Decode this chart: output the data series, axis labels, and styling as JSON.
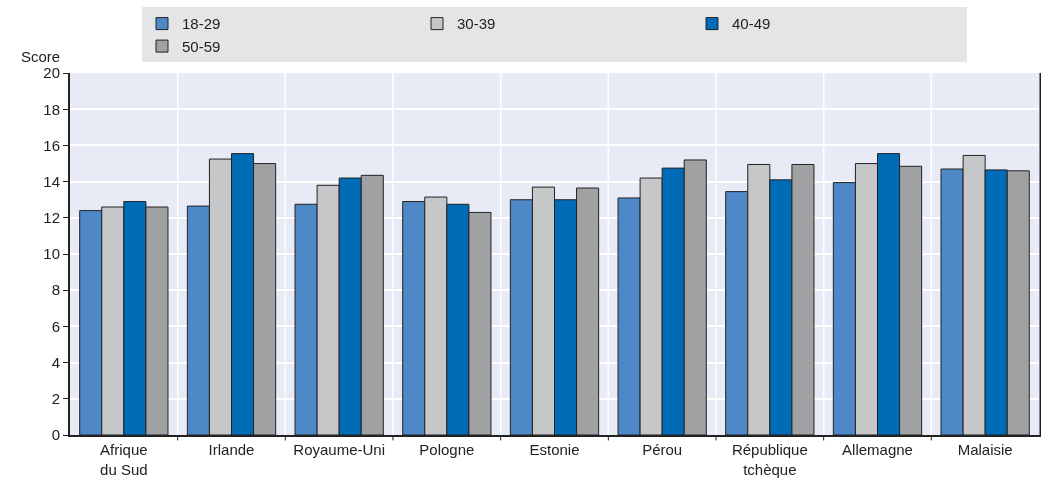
{
  "chart_data": {
    "type": "bar",
    "ylabel": "Score",
    "categories": [
      "Afrique du Sud",
      "Irlande",
      "Royaume-Uni",
      "Pologne",
      "Estonie",
      "Pérou",
      "République tchèque",
      "Allemagne",
      "Malaisie"
    ],
    "series": [
      {
        "name": "18-29",
        "color": "#4f88c6",
        "values": [
          12.4,
          12.65,
          12.75,
          12.9,
          13.0,
          13.1,
          13.45,
          13.95,
          14.7
        ]
      },
      {
        "name": "30-39",
        "color": "#c6c7c9",
        "values": [
          12.6,
          15.25,
          13.8,
          13.15,
          13.7,
          14.2,
          14.95,
          15.0,
          15.45
        ]
      },
      {
        "name": "40-49",
        "color": "#006bb6",
        "values": [
          12.9,
          15.55,
          14.2,
          12.75,
          13.0,
          14.75,
          14.1,
          15.55,
          14.65
        ]
      },
      {
        "name": "50-59",
        "color": "#a0a1a3",
        "values": [
          12.6,
          15.0,
          14.35,
          12.3,
          13.65,
          15.2,
          14.95,
          14.85,
          14.6
        ]
      }
    ],
    "ylim": [
      0,
      20
    ],
    "yticks": [
      0,
      2,
      4,
      6,
      8,
      10,
      12,
      14,
      16,
      18,
      20
    ],
    "grid": true,
    "legend": "top"
  }
}
